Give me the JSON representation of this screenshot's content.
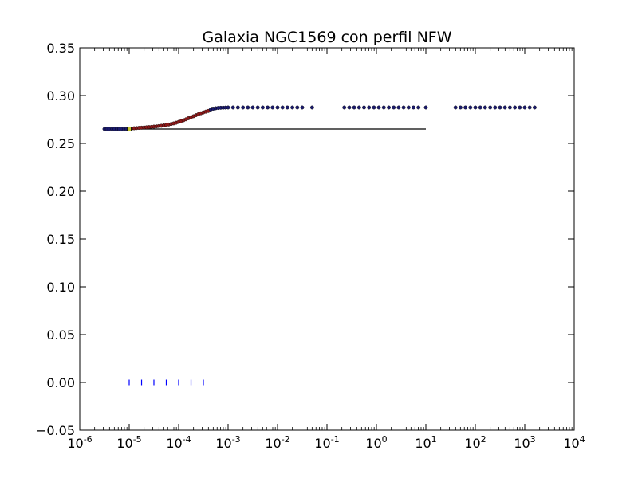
{
  "chart_data": {
    "type": "scatter",
    "title": "Galaxia NGC1569 con perfil NFW",
    "xlabel": "",
    "ylabel": "",
    "x_scale": "log",
    "xlim": [
      1e-06,
      10000
    ],
    "ylim": [
      -0.05,
      0.35
    ],
    "grid": false,
    "x_ticks": [
      {
        "value": 1e-06,
        "base": "10",
        "exp": "-6"
      },
      {
        "value": 1e-05,
        "base": "10",
        "exp": "-5"
      },
      {
        "value": 0.0001,
        "base": "10",
        "exp": "-4"
      },
      {
        "value": 0.001,
        "base": "10",
        "exp": "-3"
      },
      {
        "value": 0.01,
        "base": "10",
        "exp": "-2"
      },
      {
        "value": 0.1,
        "base": "10",
        "exp": "-1"
      },
      {
        "value": 1,
        "base": "10",
        "exp": "0"
      },
      {
        "value": 10,
        "base": "10",
        "exp": "1"
      },
      {
        "value": 100,
        "base": "10",
        "exp": "2"
      },
      {
        "value": 1000,
        "base": "10",
        "exp": "3"
      },
      {
        "value": 10000,
        "base": "10",
        "exp": "4"
      }
    ],
    "y_ticks": [
      {
        "value": -0.05,
        "label": "−0.05"
      },
      {
        "value": 0.0,
        "label": "0.00"
      },
      {
        "value": 0.05,
        "label": "0.05"
      },
      {
        "value": 0.1,
        "label": "0.10"
      },
      {
        "value": 0.15,
        "label": "0.15"
      },
      {
        "value": 0.2,
        "label": "0.20"
      },
      {
        "value": 0.25,
        "label": "0.25"
      },
      {
        "value": 0.3,
        "label": "0.30"
      },
      {
        "value": 0.35,
        "label": "0.35"
      }
    ],
    "series": [
      {
        "kind": "scatter",
        "color": "#1a1a6e",
        "x": [
          3.16e-06,
          3.55e-06,
          3.98e-06,
          4.47e-06,
          5.01e-06,
          5.62e-06,
          6.31e-06,
          7.08e-06,
          7.94e-06,
          8.91e-06
        ],
        "y": [
          0.265,
          0.265,
          0.265,
          0.265,
          0.265,
          0.265,
          0.265,
          0.265,
          0.265,
          0.265
        ]
      },
      {
        "kind": "scatter",
        "color": "#8b1a1a",
        "x": [
          1e-05,
          1.12e-05,
          1.26e-05,
          1.41e-05,
          1.58e-05,
          1.78e-05,
          2e-05,
          2.24e-05,
          2.51e-05,
          2.82e-05,
          3.16e-05,
          3.55e-05,
          3.98e-05,
          4.47e-05,
          5.01e-05,
          5.62e-05,
          6.31e-05,
          7.08e-05,
          7.94e-05,
          8.91e-05,
          0.0001,
          0.000112,
          0.000126,
          0.000141,
          0.000158,
          0.000178,
          0.0002,
          0.000224,
          0.000251,
          0.000282,
          0.000316,
          0.000355,
          0.000398
        ],
        "y": [
          0.265,
          0.2655,
          0.2658,
          0.266,
          0.2662,
          0.2664,
          0.2666,
          0.2668,
          0.267,
          0.2672,
          0.2675,
          0.2678,
          0.2681,
          0.2684,
          0.2688,
          0.2692,
          0.2697,
          0.2703,
          0.2709,
          0.2716,
          0.2724,
          0.2733,
          0.2742,
          0.2752,
          0.2763,
          0.2773,
          0.2784,
          0.2795,
          0.2805,
          0.2815,
          0.2824,
          0.2832,
          0.2839
        ]
      },
      {
        "kind": "scatter",
        "color": "#1a1a6e",
        "x": [
          0.000447,
          0.000501,
          0.000562,
          0.000631,
          0.000708,
          0.000794,
          0.000891,
          0.001,
          0.00126,
          0.00158,
          0.002,
          0.00251,
          0.00316,
          0.00398,
          0.00501,
          0.00631,
          0.00794,
          0.01,
          0.0126,
          0.0158,
          0.02,
          0.0251,
          0.0316,
          0.0501
        ],
        "y": [
          0.2855,
          0.2862,
          0.2867,
          0.287,
          0.2872,
          0.2873,
          0.2874,
          0.2875,
          0.2875,
          0.2875,
          0.2875,
          0.2875,
          0.2875,
          0.2875,
          0.2875,
          0.2875,
          0.2875,
          0.2875,
          0.2875,
          0.2875,
          0.2875,
          0.2875,
          0.2875,
          0.2875
        ]
      },
      {
        "kind": "scatter",
        "color": "#1a1a6e",
        "x": [
          0.224,
          0.282,
          0.355,
          0.447,
          0.562,
          0.708,
          0.891,
          1.12,
          1.41,
          1.78,
          2.24,
          2.82,
          3.55,
          4.47,
          5.62,
          7.08,
          10.0
        ],
        "y": [
          0.2875,
          0.2875,
          0.2875,
          0.2875,
          0.2875,
          0.2875,
          0.2875,
          0.2875,
          0.2875,
          0.2875,
          0.2875,
          0.2875,
          0.2875,
          0.2875,
          0.2875,
          0.2875,
          0.2875
        ]
      },
      {
        "kind": "scatter",
        "color": "#1a1a6e",
        "x": [
          39.8,
          50.1,
          63.1,
          79.4,
          100,
          126,
          158,
          200,
          251,
          316,
          398,
          501,
          631,
          794,
          1000,
          1259,
          1585
        ],
        "y": [
          0.2875,
          0.2875,
          0.2875,
          0.2875,
          0.2875,
          0.2875,
          0.2875,
          0.2875,
          0.2875,
          0.2875,
          0.2875,
          0.2875,
          0.2875,
          0.2875,
          0.2875,
          0.2875,
          0.2875
        ]
      },
      {
        "kind": "line",
        "color": "#000000",
        "x": [
          1e-05,
          10
        ],
        "y": [
          0.265,
          0.265
        ]
      },
      {
        "kind": "line",
        "color": "#000000",
        "x": [
          0.000447,
          0.000794
        ],
        "y": [
          0.2875,
          0.2875
        ]
      },
      {
        "kind": "square",
        "color": "#c8c832",
        "x": [
          1e-05
        ],
        "y": [
          0.265
        ]
      },
      {
        "kind": "vline",
        "color": "#0000ff",
        "x": [
          1e-05,
          1.78e-05,
          3.16e-05,
          5.62e-05,
          0.0001,
          0.000178,
          0.000316
        ],
        "y": [
          0.0,
          0.0,
          0.0,
          0.0,
          0.0,
          0.0,
          0.0
        ]
      }
    ]
  }
}
